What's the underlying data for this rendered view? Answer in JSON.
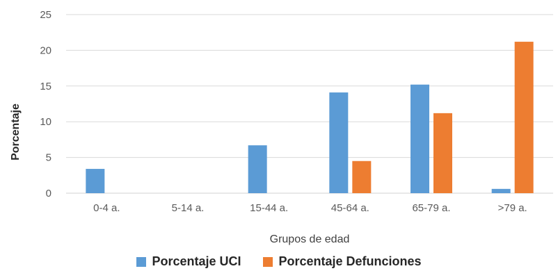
{
  "chart_data": {
    "type": "bar",
    "xlabel": "Grupos de edad",
    "ylabel": "Porcentaje",
    "ylim": [
      0,
      25
    ],
    "yticks": [
      0,
      5,
      10,
      15,
      20,
      25
    ],
    "grid": true,
    "legend_position": "bottom",
    "categories": [
      "0-4 a.",
      "5-14 a.",
      "15-44 a.",
      "45-64 a.",
      "65-79 a.",
      ">79 a."
    ],
    "series": [
      {
        "name": "Porcentaje UCI",
        "color": "#5b9bd5",
        "values": [
          3.4,
          0,
          6.7,
          14.1,
          15.2,
          0.6
        ]
      },
      {
        "name": "Porcentaje Defunciones",
        "color": "#ed7d31",
        "values": [
          0,
          0,
          0,
          4.5,
          11.2,
          21.2
        ]
      }
    ]
  }
}
